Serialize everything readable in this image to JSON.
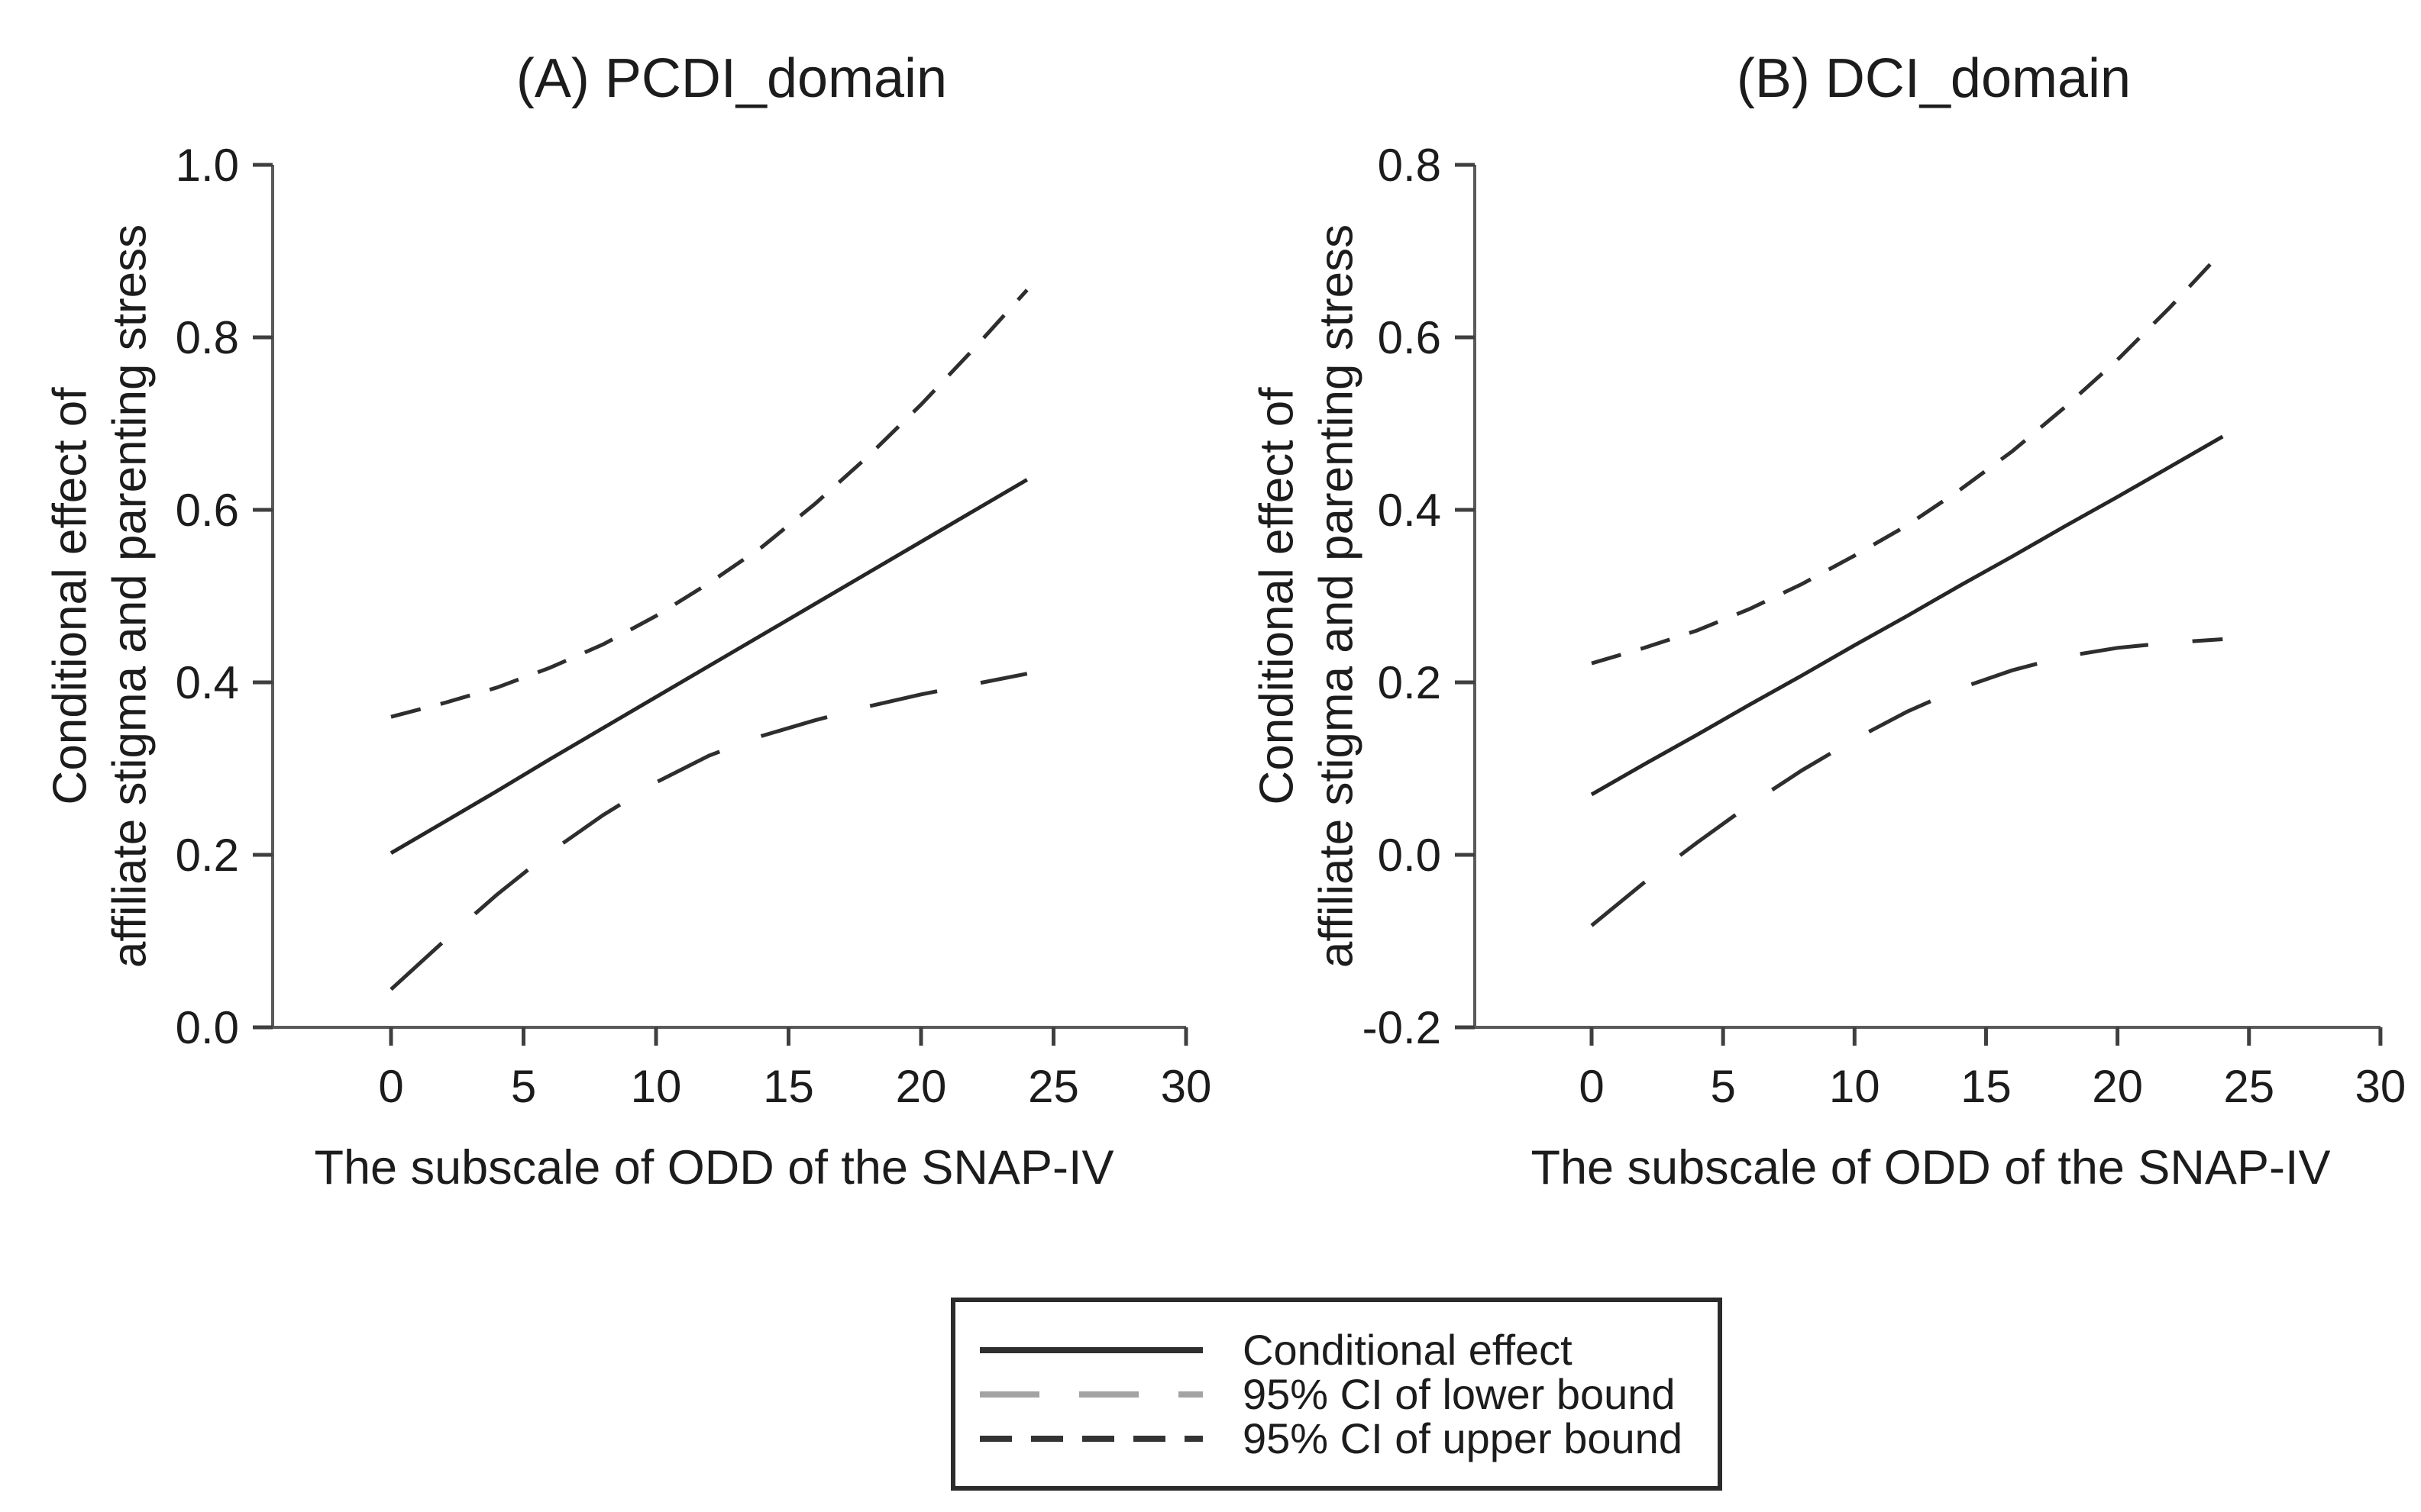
{
  "figure": {
    "background": "#ffffff",
    "text_color": "#1c1c1c",
    "axis_color": "#5a5a5a",
    "curve_color": "#2a2a2a"
  },
  "legend": {
    "items": [
      {
        "label": "Conditional effect",
        "line_style": "solid",
        "color": "#2f2f2f"
      },
      {
        "label": "95% CI of lower bound",
        "line_style": "long-dash",
        "color": "#a3a3a3"
      },
      {
        "label": "95% CI of upper bound",
        "line_style": "short-dash",
        "color": "#333333"
      }
    ]
  },
  "chart_data": [
    {
      "type": "line",
      "title": "(A) PCDI_domain",
      "xlabel": "The subscale of ODD of the SNAP-IV",
      "ylabel_line1": "Conditional effect of",
      "ylabel_line2": "affiliate stigma and parenting stress",
      "xlim": [
        0,
        30
      ],
      "ylim": [
        0.0,
        1.0
      ],
      "grid": false,
      "x_ticks": [
        "0",
        "5",
        "10",
        "15",
        "20",
        "25",
        "30"
      ],
      "y_ticks": [
        "0.0",
        "0.2",
        "0.4",
        "0.6",
        "0.8",
        "1.0"
      ],
      "x": [
        0,
        2,
        4,
        6,
        8,
        10,
        12,
        14,
        16,
        18,
        20,
        22,
        24
      ],
      "series": [
        {
          "name": "Conditional effect",
          "line_style": "solid",
          "color": "#262626",
          "values": [
            0.202,
            0.238,
            0.274,
            0.311,
            0.347,
            0.383,
            0.419,
            0.455,
            0.491,
            0.527,
            0.563,
            0.599,
            0.635
          ]
        },
        {
          "name": "95% CI of lower bound",
          "line_style": "long-dash",
          "color": "#2e2e2e",
          "values": [
            0.044,
            0.1,
            0.154,
            0.203,
            0.246,
            0.284,
            0.315,
            0.338,
            0.356,
            0.372,
            0.386,
            0.398,
            0.41
          ]
        },
        {
          "name": "95% CI of upper bound",
          "line_style": "short-dash",
          "color": "#2e2e2e",
          "values": [
            0.36,
            0.376,
            0.394,
            0.417,
            0.444,
            0.477,
            0.515,
            0.557,
            0.607,
            0.662,
            0.722,
            0.787,
            0.855
          ]
        }
      ]
    },
    {
      "type": "line",
      "title": "(B) DCI_domain",
      "xlabel": "The subscale of ODD of the SNAP-IV",
      "ylabel_line1": "Conditional effect of",
      "ylabel_line2": "affiliate stigma and parenting stress",
      "xlim": [
        0,
        30
      ],
      "ylim": [
        -0.2,
        0.8
      ],
      "grid": false,
      "x_ticks": [
        "0",
        "5",
        "10",
        "15",
        "20",
        "25",
        "30"
      ],
      "y_ticks": [
        "-0.2",
        "0.0",
        "0.2",
        "0.4",
        "0.6",
        "0.8"
      ],
      "x": [
        0,
        2,
        4,
        6,
        8,
        10,
        12,
        14,
        16,
        18,
        20,
        22,
        24
      ],
      "series": [
        {
          "name": "Conditional effect",
          "line_style": "solid",
          "color": "#262626",
          "values": [
            0.07,
            0.105,
            0.139,
            0.174,
            0.208,
            0.243,
            0.277,
            0.312,
            0.346,
            0.381,
            0.415,
            0.45,
            0.485
          ]
        },
        {
          "name": "95% CI of lower bound",
          "line_style": "long-dash",
          "color": "#2e2e2e",
          "values": [
            -0.082,
            -0.032,
            0.014,
            0.058,
            0.098,
            0.134,
            0.166,
            0.193,
            0.214,
            0.23,
            0.24,
            0.246,
            0.25
          ]
        },
        {
          "name": "95% CI of upper bound",
          "line_style": "short-dash",
          "color": "#2e2e2e",
          "values": [
            0.222,
            0.24,
            0.26,
            0.285,
            0.314,
            0.347,
            0.382,
            0.423,
            0.468,
            0.519,
            0.574,
            0.635,
            0.7
          ]
        }
      ]
    }
  ]
}
